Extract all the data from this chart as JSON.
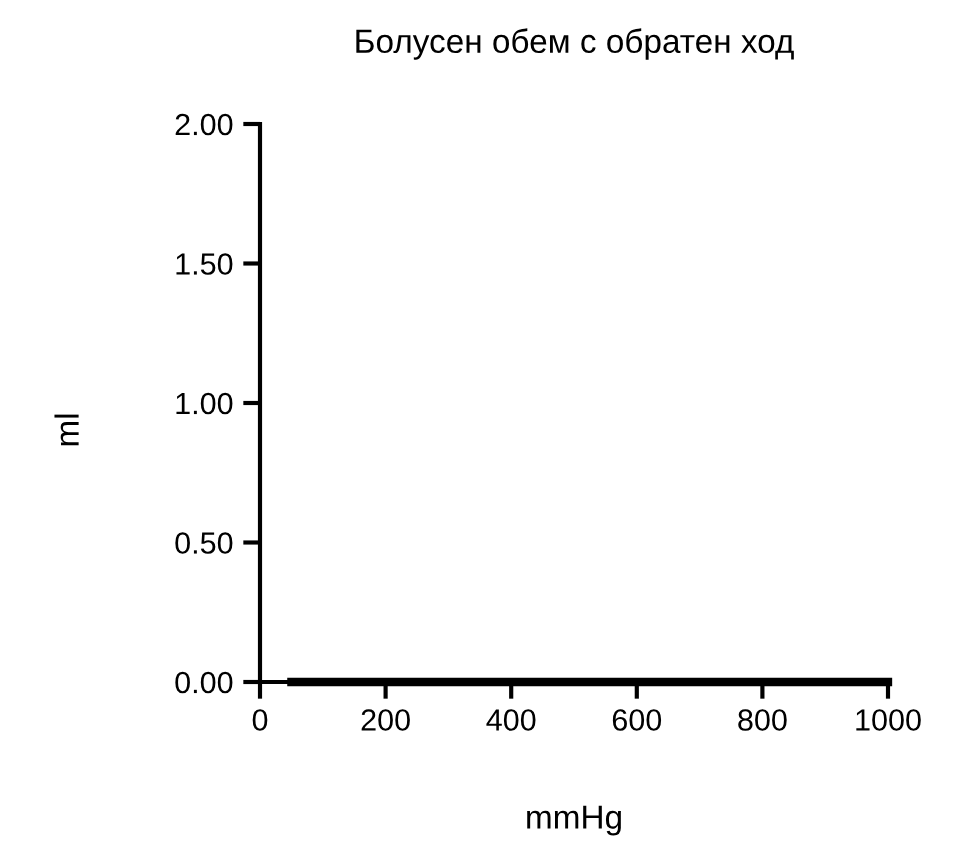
{
  "chart_data": {
    "type": "line",
    "title": "Болусен обем с обратен ход",
    "xlabel": "mmHg",
    "ylabel": "ml",
    "x": [
      50,
      1000
    ],
    "series": [
      {
        "color": "#000000",
        "values": [
          0,
          0
        ]
      }
    ],
    "xlim": [
      0,
      1000
    ],
    "xticks": [
      0,
      200,
      400,
      600,
      800,
      1000
    ],
    "ylim": [
      0,
      2
    ],
    "yticks": [
      {
        "value": 0,
        "label": "0.00"
      },
      {
        "value": 0.5,
        "label": "0.50"
      },
      {
        "value": 1,
        "label": "1.00"
      },
      {
        "value": 1.5,
        "label": "1.50"
      },
      {
        "value": 2,
        "label": "2.00"
      }
    ],
    "grid": false,
    "legend": false
  }
}
